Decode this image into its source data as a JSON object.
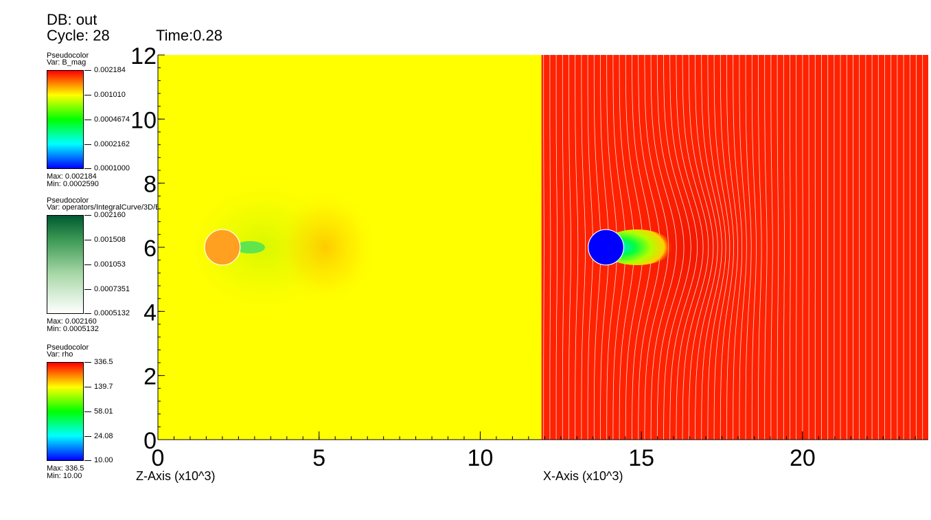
{
  "header": {
    "db": "DB: out",
    "cycle": "Cycle: 28",
    "time": "Time:0.28"
  },
  "legends": [
    {
      "label": "Pseudocolor",
      "var": "Var: B_mag",
      "ticks": [
        "0.002184",
        "0.001010",
        "0.0004674",
        "0.0002162",
        "0.0001000"
      ],
      "max": "Max:  0.002184",
      "min": "Min:  0.0002590",
      "colormap": "hot"
    },
    {
      "label": "Pseudocolor",
      "var": "Var: operators/IntegralCurve/3D/B",
      "ticks": [
        "0.002160",
        "0.001508",
        "0.001053",
        "0.0007351",
        "0.0005132"
      ],
      "max": "Max:  0.002160",
      "min": "Min:  0.0005132",
      "colormap": "greens"
    },
    {
      "label": "Pseudocolor",
      "var": "Var: rho",
      "ticks": [
        "336.5",
        "139.7",
        "58.01",
        "24.08",
        "10.00"
      ],
      "max": "Max:  336.5",
      "min": "Min:  10.00",
      "colormap": "hot"
    }
  ],
  "chart_data": {
    "type": "heatmap",
    "panels": [
      {
        "name": "Z-Axis panel",
        "field_color": "#ffff00",
        "sphere_center": [
          2.0,
          6.0
        ],
        "sphere_radius": 0.55,
        "sphere_color": "#ffa020"
      },
      {
        "name": "X-Axis panel",
        "field_color": "#ff2200",
        "sphere_center": [
          13.9,
          6.0
        ],
        "sphere_radius": 0.55,
        "sphere_color": "#0000ff",
        "streamlines": true
      }
    ],
    "xlabel_left": "Z-Axis (x10^3)",
    "xlabel_right": "X-Axis (x10^3)",
    "x_ticks": [
      "0",
      "5",
      "10",
      "15",
      "20"
    ],
    "x_tick_values": [
      0,
      5,
      10,
      15,
      20
    ],
    "y_ticks": [
      "0",
      "2",
      "4",
      "6",
      "8",
      "10",
      "12"
    ],
    "y_tick_values": [
      0,
      2,
      4,
      6,
      8,
      10,
      12
    ],
    "xlim": [
      0,
      23.9
    ],
    "ylim": [
      0,
      12
    ],
    "panel_split_x": 11.9,
    "colors": {
      "hot": [
        "#0000ff",
        "#00ffff",
        "#00ff00",
        "#ffff00",
        "#ff0000"
      ],
      "greens": [
        "#ffffff",
        "#005a32"
      ]
    }
  }
}
